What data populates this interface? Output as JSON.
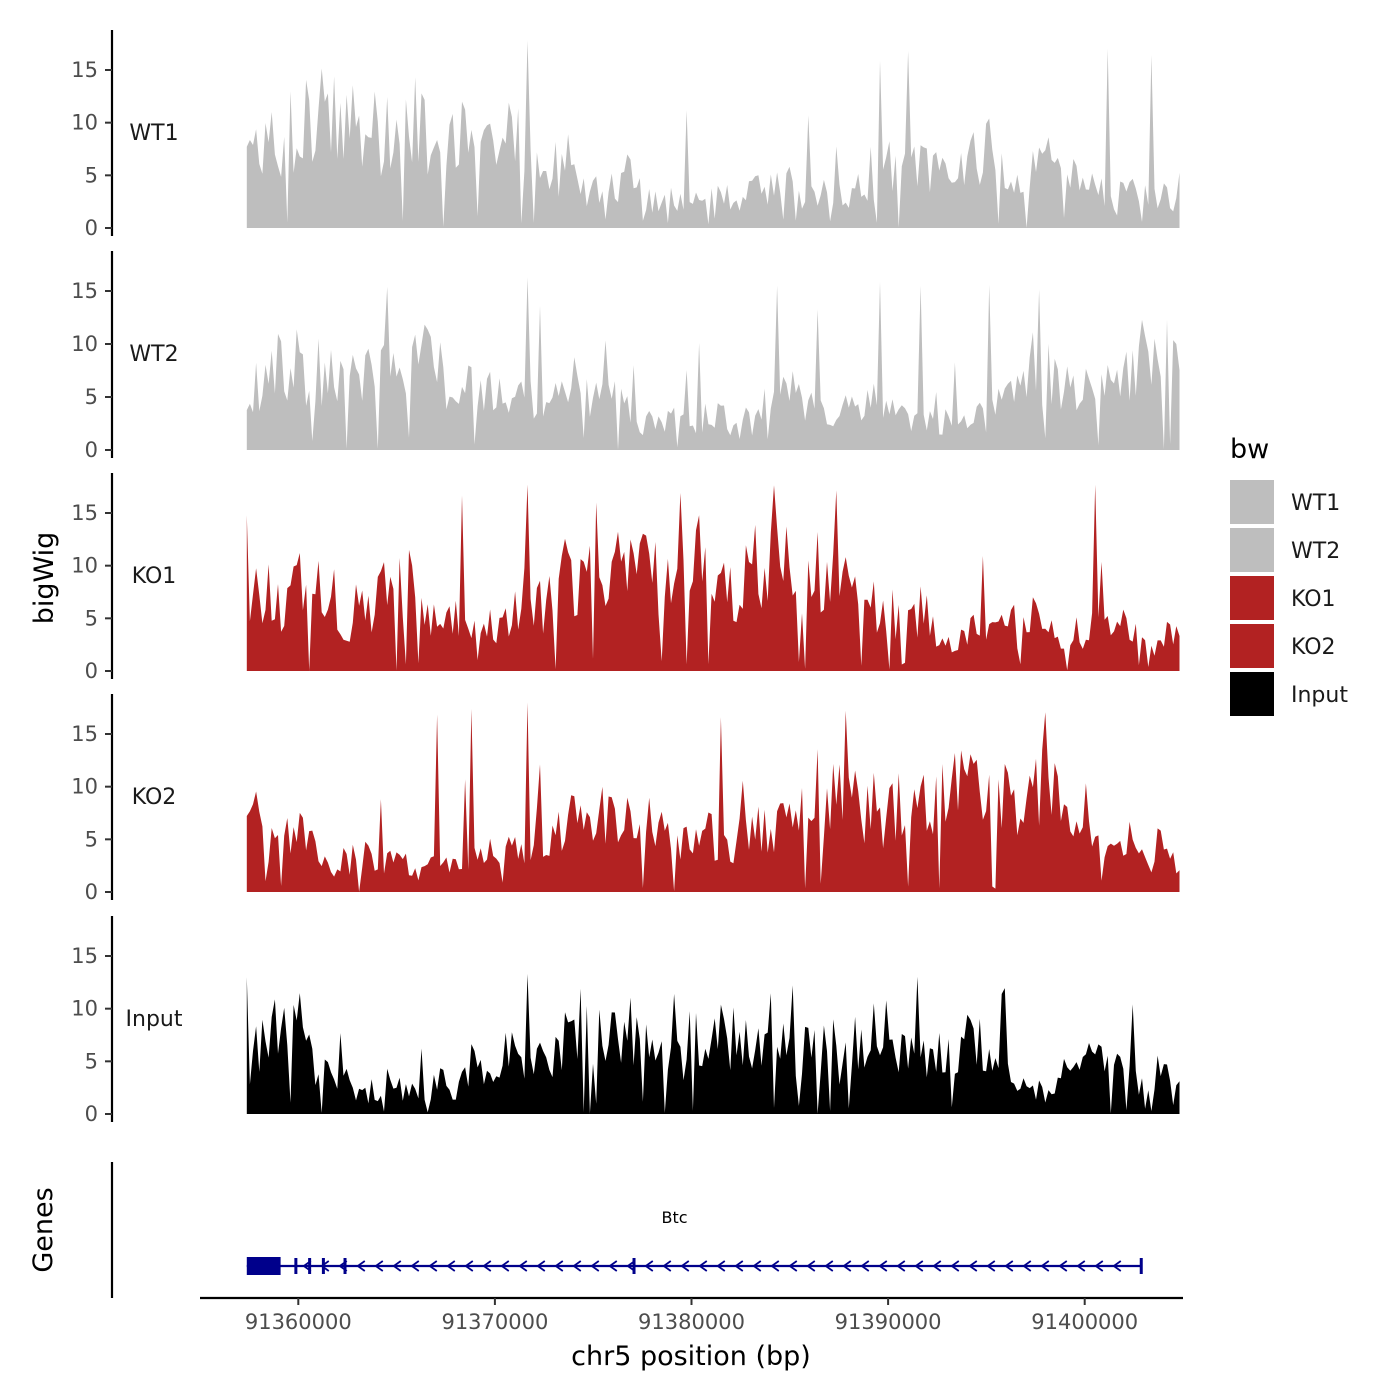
{
  "chart_data": {
    "type": "area",
    "title": "",
    "ylabel": "bigWig",
    "xlabel": "chr5 position (bp)",
    "xlim": [
      91355000,
      91405000
    ],
    "ylim": [
      0,
      18.5
    ],
    "region": [
      91357380,
      91404820
    ],
    "y_ticks": [
      0,
      5,
      10,
      15
    ],
    "x_ticks": [
      91360000,
      91370000,
      91380000,
      91390000,
      91400000
    ],
    "x_tick_labels": [
      "91360000",
      "91370000",
      "91380000",
      "91390000",
      "91400000"
    ],
    "tracks": [
      {
        "name": "WT1",
        "label": "WT1",
        "color": "#bebebe",
        "mean": 7.5,
        "peak": 17.8,
        "seed": 11
      },
      {
        "name": "WT2",
        "label": "WT2",
        "color": "#bebebe",
        "mean": 6.8,
        "peak": 16.3,
        "seed": 23
      },
      {
        "name": "KO1",
        "label": "KO1",
        "color": "#b22222",
        "mean": 6.5,
        "peak": 17.7,
        "seed": 37
      },
      {
        "name": "KO2",
        "label": "KO2",
        "color": "#b22222",
        "mean": 6.6,
        "peak": 18.0,
        "seed": 41
      },
      {
        "name": "Input",
        "label": "Input",
        "color": "#000000",
        "mean": 5.2,
        "peak": 13.3,
        "seed": 53
      }
    ],
    "legend": {
      "title": "bw",
      "position": "right",
      "entries": [
        {
          "label": "WT1",
          "color": "#bebebe"
        },
        {
          "label": "WT2",
          "color": "#bebebe"
        },
        {
          "label": "KO1",
          "color": "#b22222"
        },
        {
          "label": "KO2",
          "color": "#b22222"
        },
        {
          "label": "Input",
          "color": "#000000"
        }
      ]
    },
    "genes_panel": {
      "title": "Genes",
      "genes": [
        {
          "name": "Btc",
          "start": 91357380,
          "end": 91402930,
          "strand": "-",
          "color": "#00008b",
          "exons": [
            [
              91357380,
              91359100
            ],
            [
              91359800,
              91359900
            ],
            [
              91360500,
              91360580
            ],
            [
              91361200,
              91361300
            ],
            [
              91362300,
              91362350
            ],
            [
              91377000,
              91377080
            ],
            [
              91402800,
              91402930
            ]
          ]
        }
      ]
    }
  }
}
